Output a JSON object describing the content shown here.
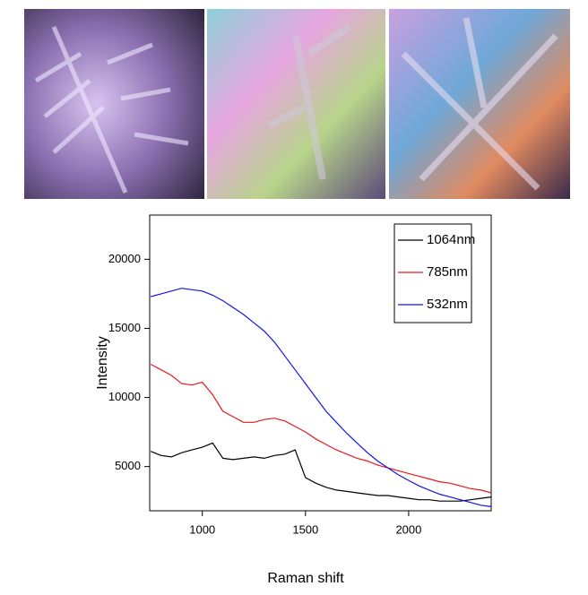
{
  "chart_data": {
    "type": "line",
    "x_label": "Raman shift",
    "y_label": "Intensity",
    "x": [
      750,
      800,
      850,
      900,
      950,
      1000,
      1050,
      1100,
      1150,
      1200,
      1250,
      1300,
      1350,
      1400,
      1450,
      1500,
      1550,
      1600,
      1650,
      1700,
      1750,
      1800,
      1850,
      1900,
      1950,
      2000,
      2050,
      2100,
      2150,
      2200,
      2250,
      2300,
      2350,
      2400
    ],
    "series": [
      {
        "name": "1064nm",
        "color": "#000000",
        "values": [
          6100,
          5800,
          5700,
          6000,
          6200,
          6400,
          6700,
          5600,
          5500,
          5600,
          5700,
          5600,
          5800,
          5900,
          6200,
          4200,
          3800,
          3500,
          3300,
          3200,
          3100,
          3000,
          2900,
          2900,
          2800,
          2700,
          2600,
          2600,
          2500,
          2500,
          2500,
          2600,
          2700,
          2800
        ]
      },
      {
        "name": "785nm",
        "color": "#e8191c",
        "values": [
          12400,
          12000,
          11600,
          11000,
          10900,
          11100,
          10200,
          9000,
          8600,
          8200,
          8200,
          8400,
          8500,
          8300,
          7900,
          7500,
          7000,
          6600,
          6200,
          5900,
          5600,
          5400,
          5100,
          4900,
          4700,
          4500,
          4300,
          4100,
          3900,
          3800,
          3600,
          3400,
          3300,
          3100
        ]
      },
      {
        "name": "532nm",
        "color": "#1414e6",
        "values": [
          17300,
          17500,
          17700,
          17900,
          17800,
          17700,
          17400,
          17000,
          16500,
          16000,
          15400,
          14800,
          14000,
          13000,
          12000,
          11000,
          10000,
          9000,
          8200,
          7400,
          6700,
          6000,
          5400,
          4900,
          4400,
          4000,
          3600,
          3300,
          3000,
          2800,
          2600,
          2400,
          2200,
          2100
        ]
      }
    ],
    "xlim": [
      745,
      2400
    ],
    "ylim": [
      1800,
      23200
    ],
    "xticks": [
      1000,
      1500,
      2000
    ],
    "yticks": [
      5000,
      10000,
      15000,
      20000
    ],
    "legend": "upper-right"
  }
}
